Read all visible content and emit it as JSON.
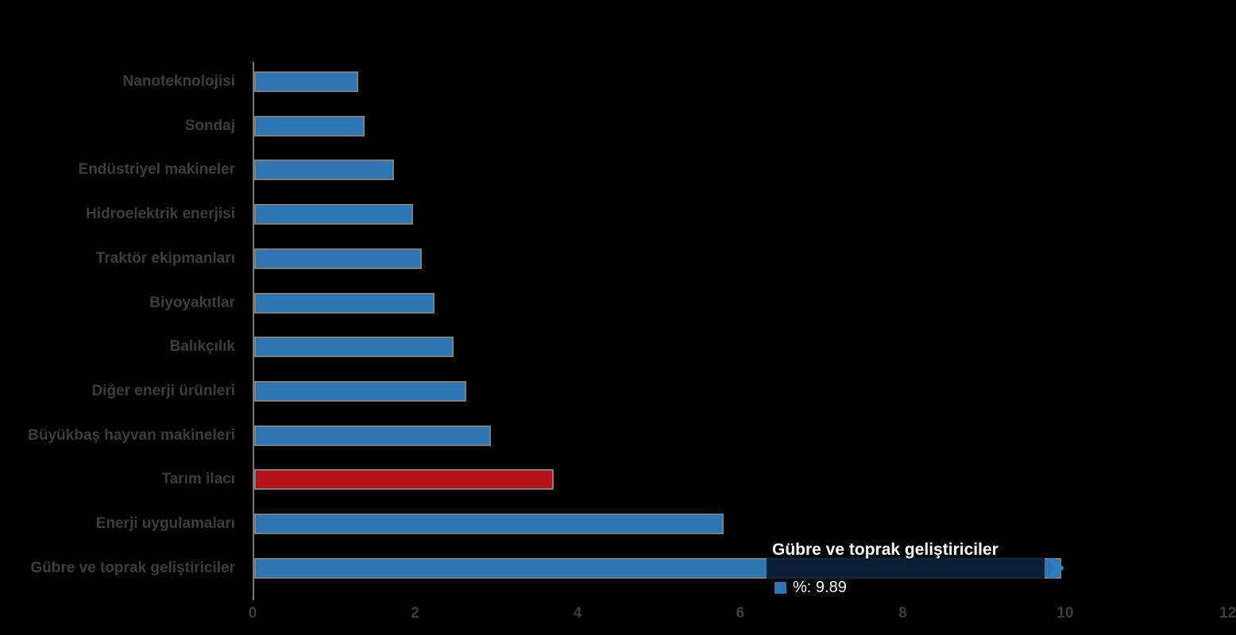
{
  "chart_data": {
    "type": "bar",
    "orientation": "horizontal",
    "title": "",
    "xlabel": "",
    "ylabel": "",
    "xlim": [
      0,
      12
    ],
    "x_ticks": [
      "0",
      "2",
      "4",
      "6",
      "8",
      "10",
      "12"
    ],
    "grid": "off",
    "legend_position": "none",
    "background_color": "#000000",
    "label_color": "#3d3d3d",
    "bar_color": "#2e75b4",
    "highlight_color": "#b5121b",
    "bar_border_color": "#7f7f7f",
    "highlight_index": 9,
    "hovered_index": 11,
    "categories": [
      "Nanoteknolojisi",
      "Sondaj",
      "Endüstriyel makineler",
      "Hidroelektrik enerjisi",
      "Traktör ekipmanları",
      "Biyoyakıtlar",
      "Balıkçılık",
      "Diğer enerji ürünleri",
      "Büyükbaş hayvan makineleri",
      "Tarım ilacı",
      "Enerji uygulamaları",
      "Gübre ve toprak geliştiriciler"
    ],
    "values": [
      1.24,
      1.32,
      1.68,
      1.92,
      2.02,
      2.18,
      2.41,
      2.57,
      2.87,
      3.65,
      5.74,
      9.89
    ]
  },
  "tooltip": {
    "title": "Gübre ve toprak geliştiriciler",
    "series_label": "%",
    "value": "9.89",
    "text": "%: 9.89",
    "swatch_color": "#2e75b4",
    "arrow_color": "#2d7fc1"
  }
}
